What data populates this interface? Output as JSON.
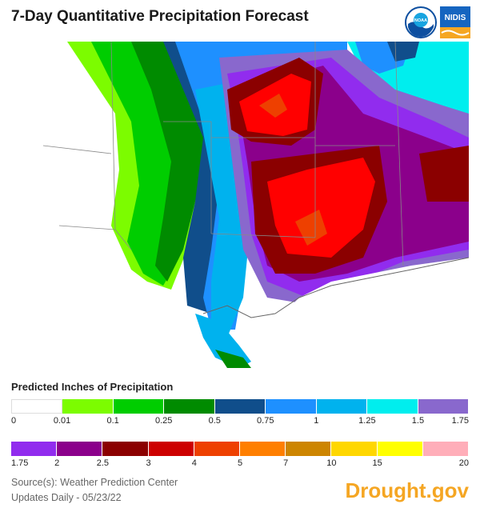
{
  "header": {
    "title": "7-Day Quantitative Precipitation Forecast",
    "noaa_logo_text": "NOAA",
    "nidis_logo_text": "NIDIS"
  },
  "legend": {
    "title": "Predicted Inches of Precipitation",
    "row1_colors": [
      "#ffffff",
      "#7cfc00",
      "#00cd00",
      "#008b00",
      "#104e8b",
      "#1e90ff",
      "#00b2ee",
      "#00eeee",
      "#8968cd"
    ],
    "row1_labels": [
      "0",
      "0.01",
      "0.1",
      "0.25",
      "0.5",
      "0.75",
      "1",
      "1.25",
      "1.5",
      "1.75"
    ],
    "row2_colors": [
      "#912cee",
      "#8b008b",
      "#8b0000",
      "#cd0000",
      "#ee4000",
      "#ff7f00",
      "#cd8500",
      "#ffd700",
      "#ffff00",
      "#ffaeb9"
    ],
    "row2_labels": [
      "1.75",
      "2",
      "2.5",
      "3",
      "4",
      "5",
      "7",
      "10",
      "15",
      "20"
    ]
  },
  "footer": {
    "source": "Source(s): Weather Prediction Center",
    "updates": "Updates Daily - 05/23/22",
    "brand": "Drought.gov"
  }
}
